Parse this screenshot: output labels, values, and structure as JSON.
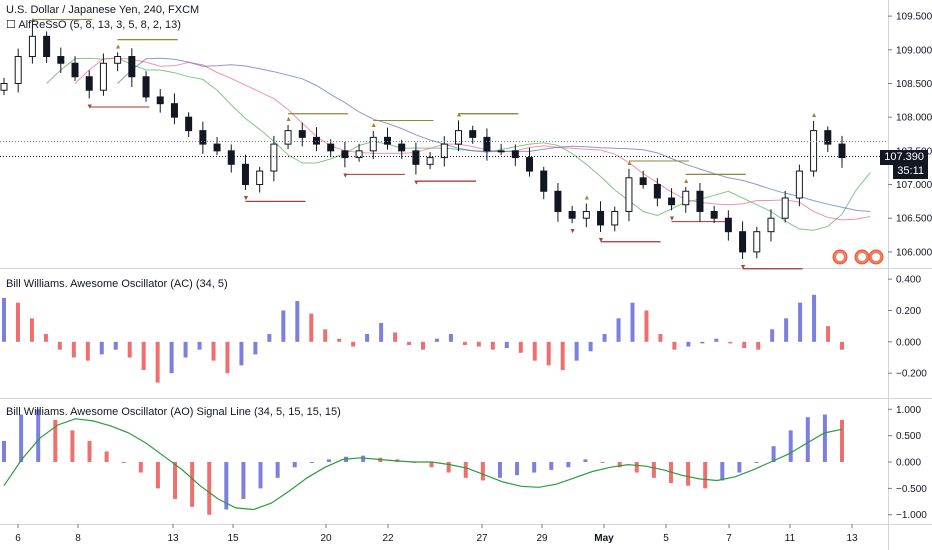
{
  "chart_data": [
    {
      "type": "candlestick",
      "title": "U.S. Dollar / Japanese Yen, 240, FXCM",
      "indicator": "AlfReSsO (5, 8, 13, 3, 5, 8, 2, 13)",
      "current_price": "107.390",
      "countdown": "35:11",
      "y_ticks": [
        "109.500",
        "109.000",
        "108.500",
        "108.000",
        "107.500",
        "107.000",
        "106.500",
        "106.000"
      ],
      "ylim": [
        105.85,
        109.65
      ],
      "grid": false,
      "close_path": [
        108.5,
        108.9,
        109.2,
        108.9,
        108.8,
        108.6,
        108.4,
        108.8,
        108.9,
        108.6,
        108.3,
        108.2,
        108.0,
        107.8,
        107.6,
        107.5,
        107.3,
        107.0,
        107.2,
        107.6,
        107.8,
        107.7,
        107.6,
        107.5,
        107.4,
        107.5,
        107.7,
        107.6,
        107.5,
        107.3,
        107.4,
        107.6,
        107.8,
        107.7,
        107.5,
        107.5,
        107.4,
        107.2,
        106.9,
        106.6,
        106.5,
        106.6,
        106.4,
        106.6,
        107.1,
        107.0,
        106.8,
        106.7,
        106.9,
        106.6,
        106.5,
        106.3,
        106.0,
        106.3,
        106.5,
        106.8,
        107.2,
        107.8,
        107.6,
        107.4
      ]
    },
    {
      "type": "bar",
      "title": "Bill Williams. Awesome Oscillator (AC) (34, 5)",
      "y_ticks": [
        "0.400",
        "0.200",
        "0.000",
        "−0.200"
      ],
      "ylim": [
        -0.32,
        0.42
      ],
      "values": [
        0.28,
        0.25,
        0.15,
        0.05,
        -0.05,
        -0.1,
        -0.12,
        -0.08,
        -0.05,
        -0.1,
        -0.18,
        -0.26,
        -0.2,
        -0.1,
        -0.05,
        -0.12,
        -0.2,
        -0.15,
        -0.08,
        0.05,
        0.2,
        0.26,
        0.18,
        0.08,
        0.02,
        -0.03,
        0.05,
        0.12,
        0.06,
        -0.02,
        -0.05,
        0.02,
        0.05,
        -0.02,
        -0.03,
        -0.05,
        -0.04,
        -0.07,
        -0.12,
        -0.15,
        -0.18,
        -0.12,
        -0.06,
        0.05,
        0.15,
        0.25,
        0.2,
        0.05,
        -0.05,
        -0.03,
        -0.01,
        0.02,
        -0.01,
        -0.04,
        -0.05,
        0.08,
        0.15,
        0.25,
        0.3,
        0.1,
        -0.05
      ]
    },
    {
      "type": "bar",
      "title": "Bill Williams. Awesome Oscillator (AO) Signal Line (34, 5, 15, 15, 15)",
      "y_ticks": [
        "1.000",
        "0.500",
        "0.000",
        "−0.500",
        "−1.000"
      ],
      "ylim": [
        -1.1,
        1.1
      ],
      "x_ticks": [
        "6",
        "8",
        "13",
        "15",
        "20",
        "22",
        "27",
        "29",
        "May",
        "5",
        "7",
        "11",
        "13"
      ],
      "values": [
        0.4,
        0.9,
        1.0,
        0.8,
        0.6,
        0.4,
        0.2,
        0.0,
        -0.2,
        -0.5,
        -0.7,
        -0.85,
        -1.0,
        -0.9,
        -0.7,
        -0.5,
        -0.3,
        -0.1,
        0.0,
        0.05,
        0.1,
        0.12,
        0.08,
        0.05,
        0.0,
        -0.1,
        -0.2,
        -0.3,
        -0.35,
        -0.3,
        -0.25,
        -0.2,
        -0.15,
        -0.1,
        0.05,
        0.0,
        -0.1,
        -0.2,
        -0.3,
        -0.4,
        -0.45,
        -0.5,
        -0.35,
        -0.2,
        0.0,
        0.3,
        0.6,
        0.85,
        0.9,
        0.8
      ],
      "signal": [
        -0.45,
        0.05,
        0.45,
        0.7,
        0.82,
        0.78,
        0.68,
        0.55,
        0.35,
        0.1,
        -0.15,
        -0.45,
        -0.7,
        -0.87,
        -0.9,
        -0.78,
        -0.55,
        -0.3,
        -0.1,
        0.05,
        0.08,
        0.05,
        0.02,
        0.0,
        0.0,
        -0.05,
        -0.12,
        -0.25,
        -0.38,
        -0.46,
        -0.48,
        -0.42,
        -0.3,
        -0.18,
        -0.1,
        -0.05,
        -0.08,
        -0.15,
        -0.25,
        -0.32,
        -0.35,
        -0.28,
        -0.15,
        0.0,
        0.15,
        0.35,
        0.55,
        0.62
      ]
    }
  ]
}
